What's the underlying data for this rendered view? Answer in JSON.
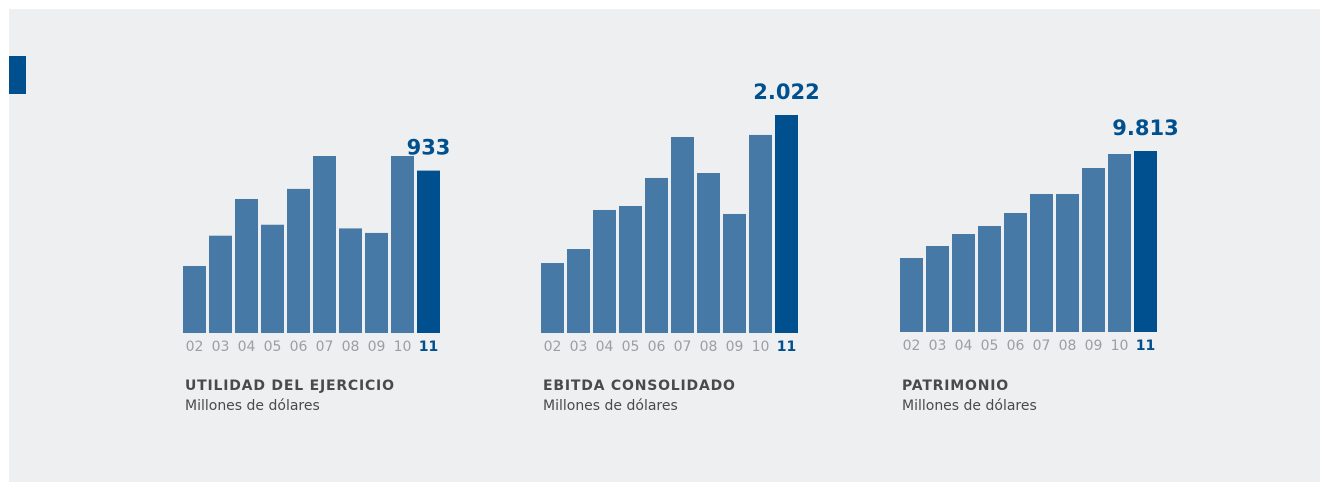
{
  "chart_data": [
    {
      "type": "bar",
      "title": "UTILIDAD DEL EJERCICIO",
      "subtitle": "Millones de dólares",
      "categories": [
        "02",
        "03",
        "04",
        "05",
        "06",
        "07",
        "08",
        "09",
        "10",
        "11"
      ],
      "values": [
        385,
        559,
        770,
        622,
        828,
        1017,
        601,
        575,
        1017,
        933
      ],
      "value_labels": [
        null,
        null,
        null,
        null,
        null,
        null,
        null,
        null,
        null,
        "933"
      ],
      "color": "#4679a6",
      "highlight_color": "#00508f"
    },
    {
      "type": "bar",
      "title": "EBITDA CONSOLIDADO",
      "subtitle": "Millones de dólares",
      "categories": [
        "02",
        "03",
        "04",
        "05",
        "06",
        "07",
        "08",
        "09",
        "10",
        "11"
      ],
      "values": [
        649,
        779,
        1141,
        1178,
        1438,
        1818,
        1484,
        1104,
        1837,
        2022
      ],
      "value_labels": [
        null,
        null,
        null,
        null,
        null,
        null,
        null,
        null,
        null,
        "2.022"
      ],
      "color": "#4679a6",
      "highlight_color": "#00508f"
    },
    {
      "type": "bar",
      "title": "PATRIMONIO",
      "subtitle": "Millones de dólares",
      "categories": [
        "02",
        "03",
        "04",
        "05",
        "06",
        "07",
        "08",
        "09",
        "10",
        "11"
      ],
      "values": [
        4012,
        4663,
        5313,
        5747,
        6452,
        7482,
        7482,
        8891,
        9650,
        9813
      ],
      "value_labels": [
        null,
        null,
        null,
        null,
        null,
        null,
        null,
        null,
        null,
        "9.813"
      ],
      "color": "#4679a6",
      "highlight_color": "#00508f"
    }
  ]
}
